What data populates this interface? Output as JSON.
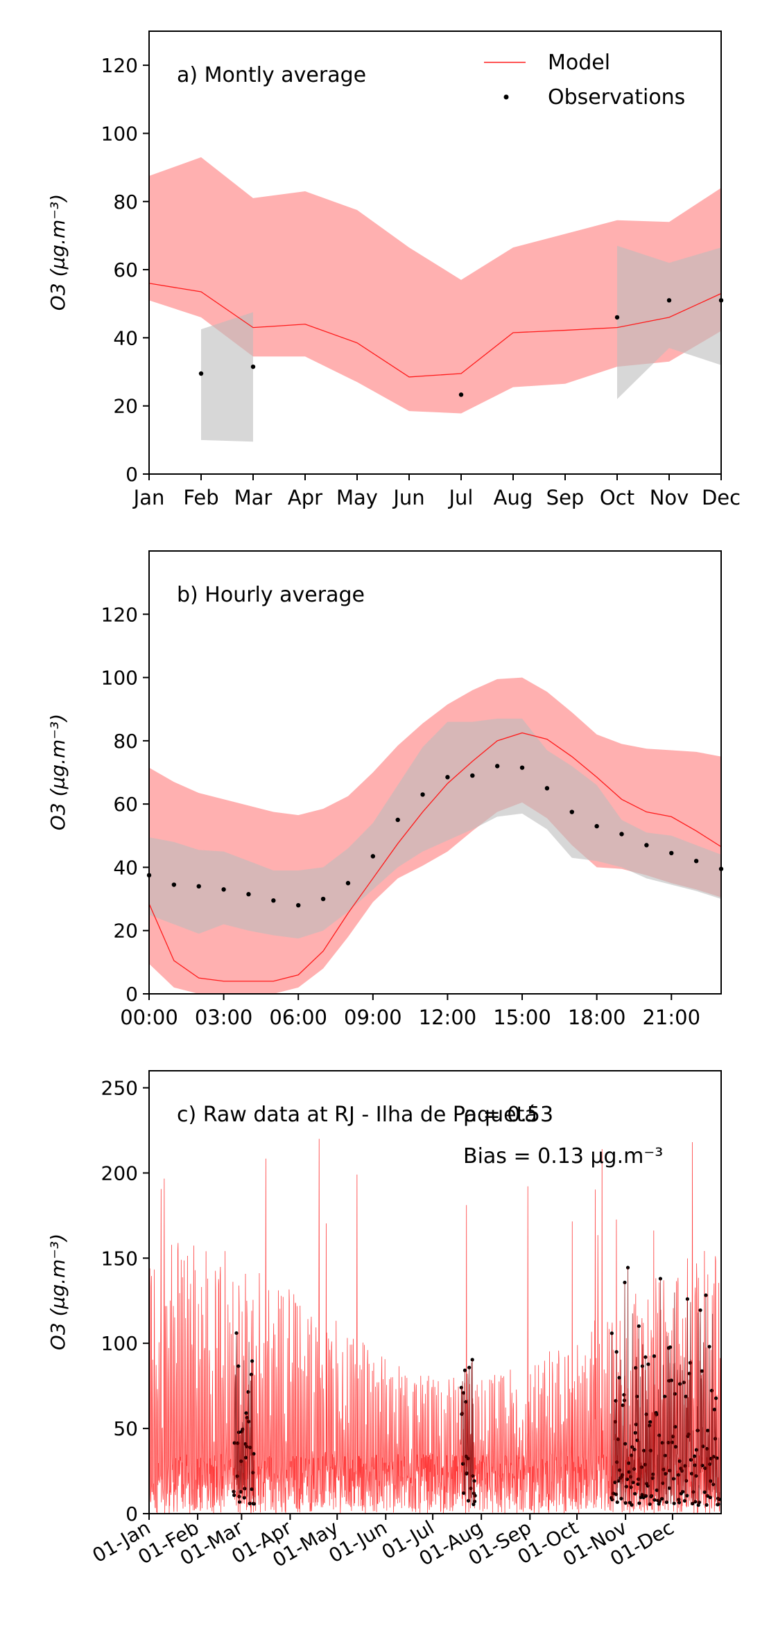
{
  "colors": {
    "model": "#ff1a1a",
    "model_band": "#ffb0b0",
    "obs_band": "#bdbdbd",
    "obs": "#000000"
  },
  "chart_data": [
    {
      "id": "a",
      "type": "line",
      "panel_label": "a) Montly average",
      "ylabel": "O3 (µg.m⁻³)",
      "ylim": [
        0,
        130
      ],
      "xlim": [
        0,
        11
      ],
      "yticks": [
        0,
        20,
        40,
        60,
        80,
        100,
        120
      ],
      "x_ticks": [
        0,
        1,
        2,
        3,
        4,
        5,
        6,
        7,
        8,
        9,
        10,
        11
      ],
      "x_tick_labels": [
        "Jan",
        "Feb",
        "Mar",
        "Apr",
        "May",
        "Jun",
        "Jul",
        "Aug",
        "Sep",
        "Oct",
        "Nov",
        "Dec"
      ],
      "legend": {
        "placement": "top-right",
        "entries": [
          "Model",
          "Observations"
        ]
      },
      "series": [
        {
          "name": "Model",
          "kind": "line",
          "x": [
            0,
            1,
            2,
            3,
            4,
            5,
            6,
            7,
            8,
            9,
            10,
            11
          ],
          "y": [
            56,
            53.5,
            43,
            44,
            38.5,
            28.5,
            29.5,
            41.5,
            42.2,
            43,
            46,
            53
          ]
        },
        {
          "kind": "band",
          "color": "model_band",
          "x": [
            0,
            1,
            2,
            3,
            4,
            5,
            6,
            7,
            8,
            9,
            10,
            11
          ],
          "upper": [
            87.5,
            93,
            81,
            83,
            77.5,
            66.5,
            57,
            66.5,
            70.5,
            74.5,
            74,
            84
          ],
          "lower": [
            51,
            46,
            34.5,
            34.5,
            27,
            18.5,
            17.8,
            25.5,
            26.5,
            31.5,
            33,
            42
          ]
        },
        {
          "kind": "band",
          "color": "obs_band",
          "x": [
            1,
            2
          ],
          "upper": [
            42.5,
            47.5
          ],
          "lower": [
            10,
            9.5
          ]
        },
        {
          "kind": "band",
          "color": "obs_band",
          "x": [
            9,
            10,
            11
          ],
          "upper": [
            67,
            62,
            66.5
          ],
          "lower": [
            22,
            37,
            32
          ]
        },
        {
          "name": "Observations",
          "kind": "points",
          "x": [
            1,
            2,
            6,
            9,
            10,
            11
          ],
          "y": [
            29.5,
            31.5,
            23.3,
            46,
            51,
            51
          ]
        }
      ]
    },
    {
      "id": "b",
      "type": "line",
      "panel_label": "b) Hourly average",
      "ylabel": "O3 (µg.m⁻³)",
      "ylim": [
        0,
        140
      ],
      "xlim": [
        0,
        23
      ],
      "yticks": [
        0,
        20,
        40,
        60,
        80,
        100,
        120
      ],
      "x_ticks": [
        0,
        3,
        6,
        9,
        12,
        15,
        18,
        21
      ],
      "x_tick_labels": [
        "00:00",
        "03:00",
        "06:00",
        "09:00",
        "12:00",
        "15:00",
        "18:00",
        "21:00"
      ],
      "series": [
        {
          "kind": "band",
          "color": "model_band",
          "x": [
            0,
            1,
            2,
            3,
            4,
            5,
            6,
            7,
            8,
            9,
            10,
            11,
            12,
            13,
            14,
            15,
            16,
            17,
            18,
            19,
            20,
            21,
            22,
            23
          ],
          "upper": [
            71.5,
            67,
            63.5,
            61.5,
            59.5,
            57.5,
            56.5,
            58.5,
            62.5,
            70,
            78.5,
            85.5,
            91.5,
            96,
            99.5,
            100,
            95.5,
            89,
            82,
            79,
            77.5,
            77,
            76.5,
            75
          ],
          "lower": [
            9.5,
            2,
            0,
            0,
            0,
            0,
            2,
            8,
            18,
            29,
            36.5,
            40.5,
            45,
            51.5,
            57.5,
            60.5,
            55.5,
            47,
            40,
            39.5,
            37.5,
            35,
            33,
            30.5
          ]
        },
        {
          "kind": "band",
          "color": "obs_band",
          "x": [
            0,
            1,
            2,
            3,
            4,
            5,
            6,
            7,
            8,
            9,
            10,
            11,
            12,
            13,
            14,
            15,
            16,
            17,
            18,
            19,
            20,
            21,
            22,
            23
          ],
          "upper": [
            49.5,
            48,
            45.5,
            45,
            42,
            39,
            39,
            40,
            46,
            54,
            66,
            78,
            86,
            86,
            87,
            87,
            77,
            72,
            66,
            55,
            51,
            50,
            47,
            44
          ],
          "lower": [
            25,
            22,
            19,
            22,
            20,
            18.5,
            17.5,
            20,
            26,
            33,
            40,
            45,
            48.5,
            52,
            56,
            57,
            52,
            43,
            42,
            40,
            36.5,
            34.5,
            32.5,
            30
          ]
        },
        {
          "name": "Model",
          "kind": "line",
          "x": [
            0,
            1,
            2,
            3,
            4,
            5,
            6,
            7,
            8,
            9,
            10,
            11,
            12,
            13,
            14,
            15,
            16,
            17,
            18,
            19,
            20,
            21,
            22,
            23
          ],
          "y": [
            28.5,
            10.5,
            5,
            4,
            4,
            4,
            6,
            13.5,
            25.5,
            36.5,
            47.5,
            57.5,
            66.5,
            73.5,
            80,
            82.5,
            80.5,
            75,
            68.5,
            61.5,
            57.5,
            56,
            51.5,
            46.5
          ]
        },
        {
          "name": "Observations",
          "kind": "points",
          "x": [
            0,
            1,
            2,
            3,
            4,
            5,
            6,
            7,
            8,
            9,
            10,
            11,
            12,
            13,
            14,
            15,
            16,
            17,
            18,
            19,
            20,
            21,
            22,
            23
          ],
          "y": [
            37.5,
            34.5,
            34,
            33,
            31.5,
            29.5,
            28,
            30,
            35,
            43.5,
            55,
            63,
            68.5,
            69,
            72,
            71.5,
            65,
            57.5,
            53,
            50.5,
            47,
            44.5,
            42,
            39.5
          ]
        }
      ]
    },
    {
      "id": "c",
      "type": "line",
      "panel_label": "c) Raw data at RJ - Ilha de Paquetá",
      "stats": {
        "rho_label": "ρ = 0.53",
        "bias_label": "Bias = 0.13 µg.m⁻³"
      },
      "ylabel": "O3 (µg.m⁻³)",
      "ylim": [
        0,
        260
      ],
      "xlim": [
        "01-Jan",
        "31-Dec"
      ],
      "yticks": [
        0,
        50,
        100,
        150,
        200,
        250
      ],
      "x_tick_labels": [
        "01-Jan",
        "01-Feb",
        "01-Mar",
        "01-Apr",
        "01-May",
        "01-Jun",
        "01-Jul",
        "01-Aug",
        "01-Sep",
        "01-Oct",
        "01-Nov",
        "01-Dec"
      ],
      "x_tick_days": [
        0,
        31,
        59,
        90,
        120,
        151,
        181,
        212,
        243,
        273,
        304,
        334
      ],
      "series": [
        {
          "name": "Model",
          "kind": "hourly-line",
          "typical_range": [
            0,
            160
          ],
          "peak": 222
        },
        {
          "name": "Observations",
          "kind": "points",
          "periods": [
            [
              "24-Feb",
              "09-Mar"
            ],
            [
              "19-Jul",
              "28-Jul"
            ],
            [
              "23-Oct",
              "31-Dec"
            ]
          ],
          "max": 161
        }
      ]
    }
  ]
}
